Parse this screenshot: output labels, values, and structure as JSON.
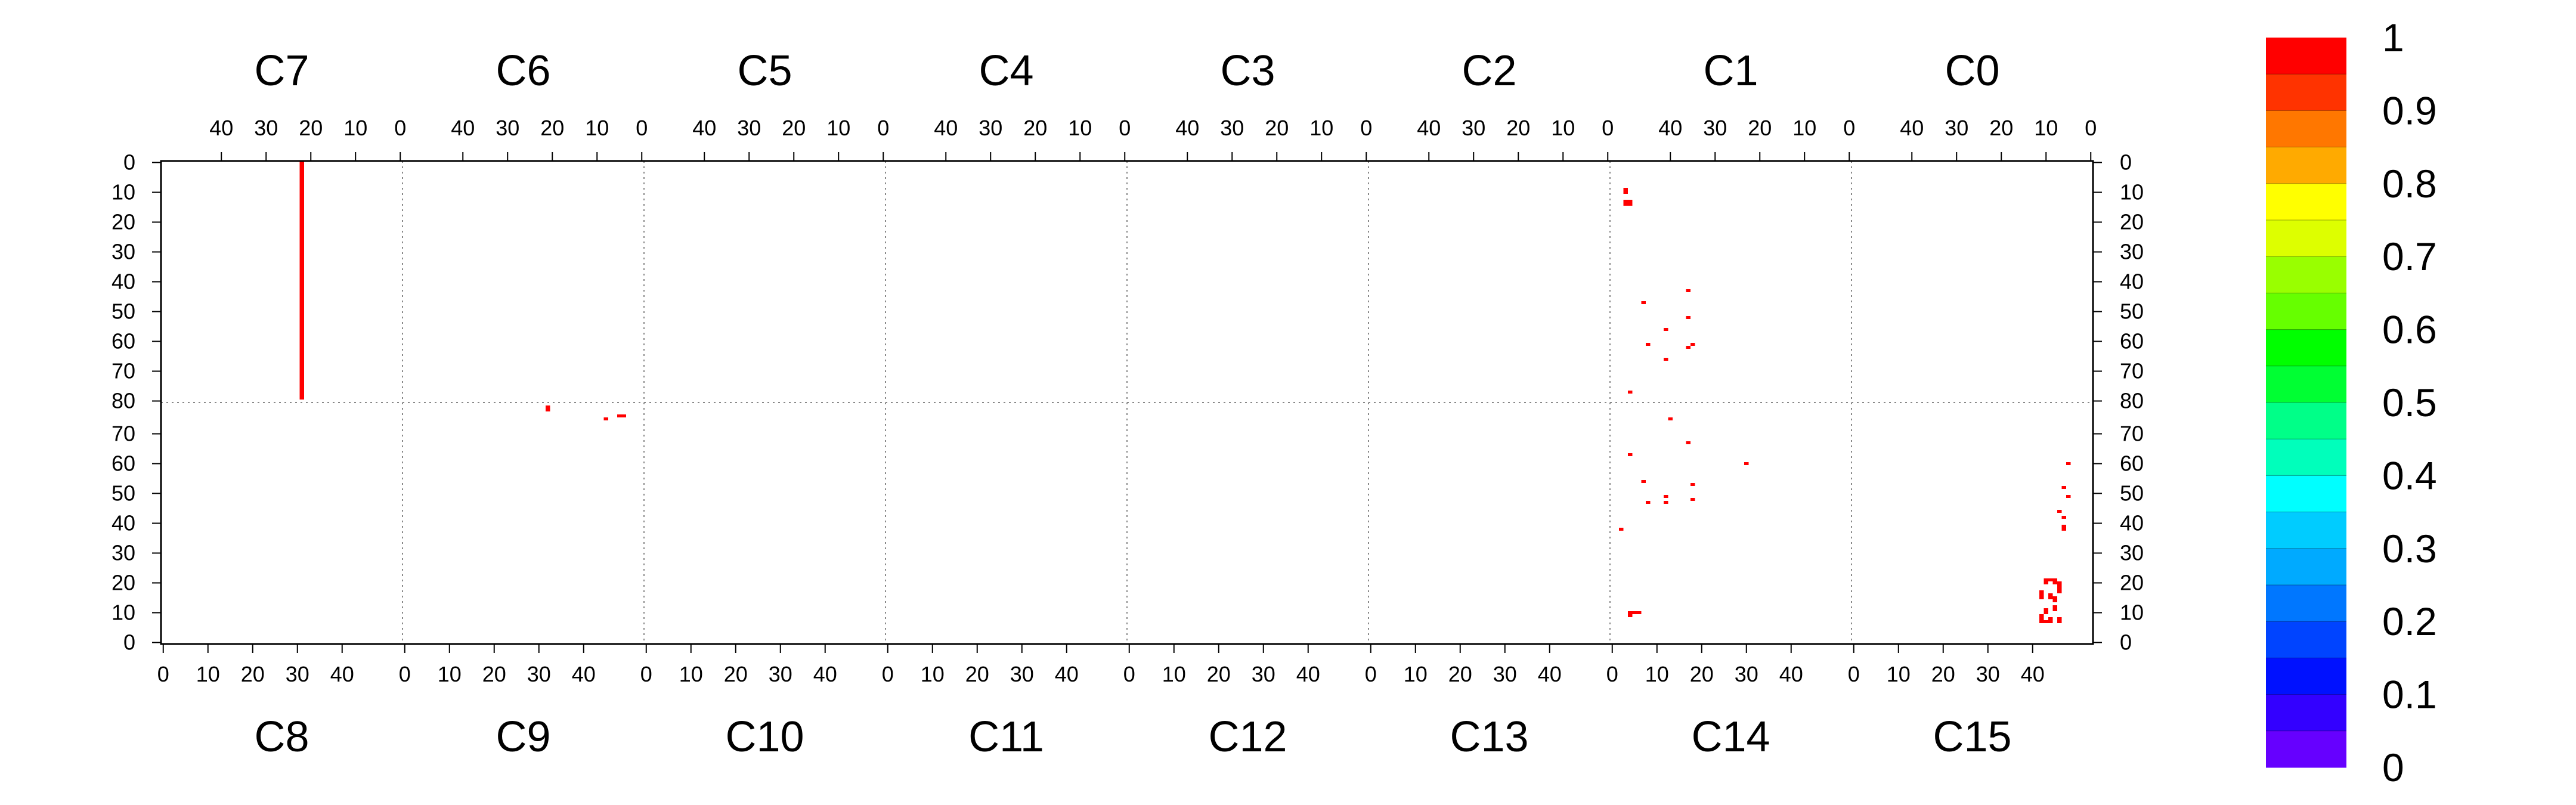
{
  "chart_data": {
    "type": "heatmap",
    "top_chips": [
      "C7",
      "C6",
      "C5",
      "C4",
      "C3",
      "C2",
      "C1",
      "C0"
    ],
    "bottom_chips": [
      "C8",
      "C9",
      "C10",
      "C11",
      "C12",
      "C13",
      "C14",
      "C15"
    ],
    "top_x_ticks": [
      "40",
      "30",
      "20",
      "10",
      "0"
    ],
    "bottom_x_ticks": [
      "0",
      "10",
      "20",
      "30",
      "40"
    ],
    "top_y_ticks": [
      "0",
      "10",
      "20",
      "30",
      "40",
      "50",
      "60",
      "70",
      "80"
    ],
    "bottom_y_ticks": [
      "70",
      "60",
      "50",
      "40",
      "30",
      "20",
      "10",
      "0"
    ],
    "colorbar": {
      "min": 0,
      "max": 1,
      "tick_labels": [
        "1",
        "0.9",
        "0.8",
        "0.7",
        "0.6",
        "0.5",
        "0.4",
        "0.3",
        "0.2",
        "0.1",
        "0"
      ],
      "colors": [
        "#ff0000",
        "#ff3300",
        "#ff7700",
        "#ffaa00",
        "#ffff00",
        "#ddff00",
        "#99ff00",
        "#66ff00",
        "#00ff00",
        "#00ff33",
        "#00ff88",
        "#00ffbb",
        "#00ffff",
        "#00ccff",
        "#00aaff",
        "#0077ff",
        "#0044ff",
        "#0011ff",
        "#3300ff",
        "#6600ff"
      ]
    },
    "cells_value": 1,
    "cells": [
      {
        "chip": "C7",
        "col": 22,
        "row_start": 0,
        "row_end": 80
      },
      {
        "chip": "C1",
        "col": 50,
        "row_start": 9,
        "row_end": 11
      },
      {
        "chip": "C1",
        "col": 49,
        "row_start": 13,
        "row_end": 15
      },
      {
        "chip": "C1",
        "col": 50,
        "row_start": 13,
        "row_end": 15
      },
      {
        "chip": "C1",
        "col": 36,
        "row_start": 43,
        "row_end": 44
      },
      {
        "chip": "C1",
        "col": 46,
        "row_start": 47,
        "row_end": 48
      },
      {
        "chip": "C1",
        "col": 36,
        "row_start": 52,
        "row_end": 53
      },
      {
        "chip": "C1",
        "col": 41,
        "row_start": 56,
        "row_end": 57
      },
      {
        "chip": "C1",
        "col": 45,
        "row_start": 61,
        "row_end": 62
      },
      {
        "chip": "C1",
        "col": 35,
        "row_start": 61,
        "row_end": 62
      },
      {
        "chip": "C1",
        "col": 36,
        "row_start": 62,
        "row_end": 63
      },
      {
        "chip": "C1",
        "col": 41,
        "row_start": 66,
        "row_end": 67
      },
      {
        "chip": "C1",
        "col": 49,
        "row_start": 77,
        "row_end": 78
      },
      {
        "chip": "C9",
        "col": 32,
        "row_start": 78,
        "row_end": 80
      },
      {
        "chip": "C9",
        "col": 45,
        "row_start": 75,
        "row_end": 76
      },
      {
        "chip": "C9",
        "col": 48,
        "row_start": 76,
        "row_end": 77
      },
      {
        "chip": "C9",
        "col": 49,
        "row_start": 76,
        "row_end": 77
      },
      {
        "chip": "C14",
        "col": 13,
        "row_start": 75,
        "row_end": 76
      },
      {
        "chip": "C14",
        "col": 17,
        "row_start": 67,
        "row_end": 68
      },
      {
        "chip": "C14",
        "col": 4,
        "row_start": 63,
        "row_end": 64
      },
      {
        "chip": "C14",
        "col": 30,
        "row_start": 60,
        "row_end": 61
      },
      {
        "chip": "C14",
        "col": 7,
        "row_start": 54,
        "row_end": 55
      },
      {
        "chip": "C14",
        "col": 18,
        "row_start": 53,
        "row_end": 54
      },
      {
        "chip": "C14",
        "col": 12,
        "row_start": 49,
        "row_end": 50
      },
      {
        "chip": "C14",
        "col": 18,
        "row_start": 48,
        "row_end": 49
      },
      {
        "chip": "C14",
        "col": 8,
        "row_start": 47,
        "row_end": 48
      },
      {
        "chip": "C14",
        "col": 12,
        "row_start": 47,
        "row_end": 48
      },
      {
        "chip": "C14",
        "col": 2,
        "row_start": 38,
        "row_end": 39
      },
      {
        "chip": "C14",
        "col": 4,
        "row_start": 10,
        "row_end": 11
      },
      {
        "chip": "C14",
        "col": 5,
        "row_start": 10,
        "row_end": 11
      },
      {
        "chip": "C14",
        "col": 6,
        "row_start": 10,
        "row_end": 11
      },
      {
        "chip": "C14",
        "col": 4,
        "row_start": 9,
        "row_end": 10
      },
      {
        "chip": "C15",
        "col": 48,
        "row_start": 60,
        "row_end": 61
      },
      {
        "chip": "C15",
        "col": 47,
        "row_start": 52,
        "row_end": 53
      },
      {
        "chip": "C15",
        "col": 48,
        "row_start": 49,
        "row_end": 50
      },
      {
        "chip": "C15",
        "col": 46,
        "row_start": 44,
        "row_end": 45
      },
      {
        "chip": "C15",
        "col": 47,
        "row_start": 42,
        "row_end": 43
      },
      {
        "chip": "C15",
        "col": 47,
        "row_start": 38,
        "row_end": 40
      },
      {
        "chip": "C15",
        "col": 43,
        "row_start": 20,
        "row_end": 22
      },
      {
        "chip": "C15",
        "col": 44,
        "row_start": 21,
        "row_end": 22
      },
      {
        "chip": "C15",
        "col": 45,
        "row_start": 20,
        "row_end": 22
      },
      {
        "chip": "C15",
        "col": 46,
        "row_start": 17,
        "row_end": 21
      },
      {
        "chip": "C15",
        "col": 42,
        "row_start": 15,
        "row_end": 18
      },
      {
        "chip": "C15",
        "col": 44,
        "row_start": 15,
        "row_end": 17
      },
      {
        "chip": "C15",
        "col": 45,
        "row_start": 14,
        "row_end": 16
      },
      {
        "chip": "C15",
        "col": 45,
        "row_start": 11,
        "row_end": 13
      },
      {
        "chip": "C15",
        "col": 43,
        "row_start": 10,
        "row_end": 12
      },
      {
        "chip": "C15",
        "col": 42,
        "row_start": 7,
        "row_end": 10
      },
      {
        "chip": "C15",
        "col": 43,
        "row_start": 7,
        "row_end": 8
      },
      {
        "chip": "C15",
        "col": 44,
        "row_start": 7,
        "row_end": 9
      },
      {
        "chip": "C15",
        "col": 46,
        "row_start": 7,
        "row_end": 9
      }
    ]
  }
}
